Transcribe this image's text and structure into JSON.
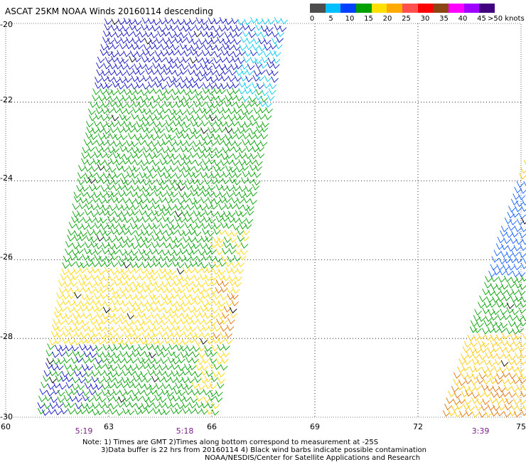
{
  "title": "ASCAT 25KM NOAA Winds 20160114 descending",
  "colorbar": {
    "colors": [
      "#4d4d4d",
      "#00bfff",
      "#0040ff",
      "#00a000",
      "#ffe000",
      "#ffaa00",
      "#ff5050",
      "#ff0000",
      "#8b4513",
      "#ff00ff",
      "#a000ff",
      "#400080"
    ],
    "labels": [
      "0",
      "5",
      "10",
      "15",
      "20",
      "25",
      "30",
      "35",
      "40",
      "45",
      ">50 knots"
    ]
  },
  "y_axis": {
    "labels": [
      "-20",
      "-22",
      "-24",
      "-26",
      "-28",
      "-30"
    ]
  },
  "x_axis": {
    "labels": [
      "60",
      "63",
      "66",
      "69",
      "72",
      "75"
    ]
  },
  "pass_times": [
    "5:19",
    "5:18",
    "3:39"
  ],
  "notes": {
    "line1": "Note: 1) Times are GMT 2)Times along bottom correspond to measurement at -25S",
    "line2": "3)Data buffer is 22 hrs from 20160114 4) Black wind barbs indicate possible contamination",
    "line3": "NOAA/NESDIS/Center for Satellite Applications and Research"
  },
  "map_data": {
    "lon_range": [
      60,
      75
    ],
    "lat_range": [
      -30,
      -20
    ],
    "swaths": [
      {
        "name": "swath-west",
        "zones": [
          {
            "lat_from": -20,
            "lat_to": -21.7,
            "color": "#1010c0"
          },
          {
            "lat_from": -21.7,
            "lat_to": -26.2,
            "color": "#00a000"
          },
          {
            "lat_from": -26.2,
            "lat_to": -28.2,
            "color": "#ffd800"
          },
          {
            "lat_from": -28.2,
            "lat_to": -30,
            "color": "#00a000"
          }
        ]
      },
      {
        "name": "swath-east",
        "zones": [
          {
            "lat_from": -24,
            "lat_to": -26.5,
            "color": "#1060ff"
          },
          {
            "lat_from": -26.5,
            "lat_to": -28,
            "color": "#00a000"
          },
          {
            "lat_from": -28,
            "lat_to": -30,
            "color": "#ffc800"
          }
        ]
      }
    ]
  }
}
